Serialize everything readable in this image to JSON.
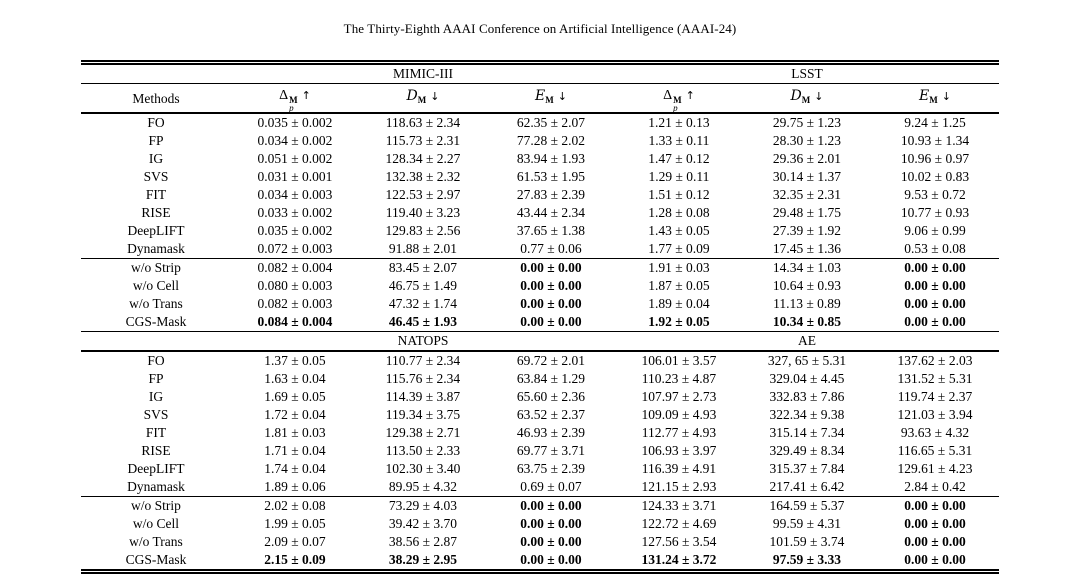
{
  "page": {
    "header": "The Thirty-Eighth AAAI Conference on Artificial Intelligence (AAAI-24)"
  },
  "table": {
    "methods_header": "Methods",
    "metric_columns": [
      {
        "symbol": "Δ",
        "sup": "M",
        "sub": "p",
        "arrow": "↑",
        "style": "delta"
      },
      {
        "symbol": "D",
        "sub": "M",
        "arrow": "↓",
        "style": "script"
      },
      {
        "symbol": "E",
        "sub": "M",
        "arrow": "↓",
        "style": "script"
      }
    ],
    "sections": [
      {
        "groups": [
          "MIMIC-III",
          "LSST"
        ],
        "rows": [
          {
            "method": "FO",
            "values": [
              "0.035 ± 0.002",
              "118.63 ± 2.34",
              "62.35 ± 2.07",
              "1.21 ± 0.13",
              "29.75 ± 1.23",
              "9.24 ± 1.25"
            ],
            "bold": [],
            "rule_above": false
          },
          {
            "method": "FP",
            "values": [
              "0.034 ± 0.002",
              "115.73 ± 2.31",
              "77.28 ± 2.02",
              "1.33 ± 0.11",
              "28.30 ± 1.23",
              "10.93 ± 1.34"
            ],
            "bold": [],
            "rule_above": false
          },
          {
            "method": "IG",
            "values": [
              "0.051 ± 0.002",
              "128.34 ± 2.27",
              "83.94 ± 1.93",
              "1.47 ± 0.12",
              "29.36 ± 2.01",
              "10.96 ± 0.97"
            ],
            "bold": [],
            "rule_above": false
          },
          {
            "method": "SVS",
            "values": [
              "0.031 ± 0.001",
              "132.38 ± 2.32",
              "61.53 ± 1.95",
              "1.29 ± 0.11",
              "30.14 ± 1.37",
              "10.02 ± 0.83"
            ],
            "bold": [],
            "rule_above": false
          },
          {
            "method": "FIT",
            "values": [
              "0.034 ± 0.003",
              "122.53 ± 2.97",
              "27.83 ± 2.39",
              "1.51 ± 0.12",
              "32.35 ± 2.31",
              "9.53 ± 0.72"
            ],
            "bold": [],
            "rule_above": false
          },
          {
            "method": "RISE",
            "values": [
              "0.033 ± 0.002",
              "119.40 ± 3.23",
              "43.44 ± 2.34",
              "1.28 ± 0.08",
              "29.48 ± 1.75",
              "10.77 ± 0.93"
            ],
            "bold": [],
            "rule_above": false
          },
          {
            "method": "DeepLIFT",
            "values": [
              "0.035 ± 0.002",
              "129.83 ± 2.56",
              "37.65 ± 1.38",
              "1.43 ± 0.05",
              "27.39 ± 1.92",
              "9.06 ± 0.99"
            ],
            "bold": [],
            "rule_above": false
          },
          {
            "method": "Dynamask",
            "values": [
              "0.072 ± 0.003",
              "91.88 ± 2.01",
              "0.77 ± 0.06",
              "1.77 ± 0.09",
              "17.45 ± 1.36",
              "0.53 ± 0.08"
            ],
            "bold": [],
            "rule_above": false
          },
          {
            "method": "w/o Strip",
            "values": [
              "0.082 ± 0.004",
              "83.45 ± 2.07",
              "0.00 ± 0.00",
              "1.91 ± 0.03",
              "14.34 ± 1.03",
              "0.00 ± 0.00"
            ],
            "bold": [
              2,
              5
            ],
            "rule_above": true
          },
          {
            "method": "w/o Cell",
            "values": [
              "0.080 ± 0.003",
              "46.75 ± 1.49",
              "0.00 ± 0.00",
              "1.87 ± 0.05",
              "10.64 ± 0.93",
              "0.00 ± 0.00"
            ],
            "bold": [
              2,
              5
            ],
            "rule_above": false
          },
          {
            "method": "w/o Trans",
            "values": [
              "0.082 ± 0.003",
              "47.32 ± 1.74",
              "0.00 ± 0.00",
              "1.89 ± 0.04",
              "11.13 ± 0.89",
              "0.00 ± 0.00"
            ],
            "bold": [
              2,
              5
            ],
            "rule_above": false
          },
          {
            "method": "CGS-Mask",
            "values": [
              "0.084 ± 0.004",
              "46.45 ± 1.93",
              "0.00 ± 0.00",
              "1.92 ± 0.05",
              "10.34 ± 0.85",
              "0.00 ± 0.00"
            ],
            "bold": [
              0,
              1,
              2,
              3,
              4,
              5
            ],
            "rule_above": false
          }
        ]
      },
      {
        "groups": [
          "NATOPS",
          "AE"
        ],
        "rows": [
          {
            "method": "FO",
            "values": [
              "1.37 ± 0.05",
              "110.77 ± 2.34",
              "69.72 ± 2.01",
              "106.01 ± 3.57",
              "327, 65 ± 5.31",
              "137.62 ± 2.03"
            ],
            "bold": [],
            "rule_above": false
          },
          {
            "method": "FP",
            "values": [
              "1.63 ± 0.04",
              "115.76 ± 2.34",
              "63.84 ± 1.29",
              "110.23 ± 4.87",
              "329.04 ± 4.45",
              "131.52 ± 5.31"
            ],
            "bold": [],
            "rule_above": false
          },
          {
            "method": "IG",
            "values": [
              "1.69 ± 0.05",
              "114.39 ± 3.87",
              "65.60 ± 2.36",
              "107.97 ± 2.73",
              "332.83 ± 7.86",
              "119.74 ± 2.37"
            ],
            "bold": [],
            "rule_above": false
          },
          {
            "method": "SVS",
            "values": [
              "1.72 ± 0.04",
              "119.34 ± 3.75",
              "63.52 ± 2.37",
              "109.09 ± 4.93",
              "322.34 ± 9.38",
              "121.03 ± 3.94"
            ],
            "bold": [],
            "rule_above": false
          },
          {
            "method": "FIT",
            "values": [
              "1.81 ± 0.03",
              "129.38 ± 2.71",
              "46.93 ± 2.39",
              "112.77 ± 4.93",
              "315.14 ± 7.34",
              "93.63 ± 4.32"
            ],
            "bold": [],
            "rule_above": false
          },
          {
            "method": "RISE",
            "values": [
              "1.71 ± 0.04",
              "113.50 ± 2.33",
              "69.77 ± 3.71",
              "106.93 ± 3.97",
              "329.49 ± 8.34",
              "116.65 ± 5.31"
            ],
            "bold": [],
            "rule_above": false
          },
          {
            "method": "DeepLIFT",
            "values": [
              "1.74 ± 0.04",
              "102.30 ± 3.40",
              "63.75 ± 2.39",
              "116.39 ± 4.91",
              "315.37 ± 7.84",
              "129.61 ± 4.23"
            ],
            "bold": [],
            "rule_above": false
          },
          {
            "method": "Dynamask",
            "values": [
              "1.89 ± 0.06",
              "89.95 ± 4.32",
              "0.69 ± 0.07",
              "121.15 ± 2.93",
              "217.41 ± 6.42",
              "2.84 ± 0.42"
            ],
            "bold": [],
            "rule_above": false
          },
          {
            "method": "w/o Strip",
            "values": [
              "2.02 ± 0.08",
              "73.29 ± 4.03",
              "0.00 ± 0.00",
              "124.33 ± 3.71",
              "164.59 ± 5.37",
              "0.00 ± 0.00"
            ],
            "bold": [
              2,
              5
            ],
            "rule_above": true
          },
          {
            "method": "w/o Cell",
            "values": [
              "1.99 ± 0.05",
              "39.42 ± 3.70",
              "0.00 ± 0.00",
              "122.72 ± 4.69",
              "99.59 ± 4.31",
              "0.00 ± 0.00"
            ],
            "bold": [
              2,
              5
            ],
            "rule_above": false
          },
          {
            "method": "w/o Trans",
            "values": [
              "2.09 ± 0.07",
              "38.56 ± 2.87",
              "0.00 ± 0.00",
              "127.56 ± 3.54",
              "101.59 ± 3.74",
              "0.00 ± 0.00"
            ],
            "bold": [
              2,
              5
            ],
            "rule_above": false
          },
          {
            "method": "CGS-Mask",
            "values": [
              "2.15 ± 0.09",
              "38.29 ± 2.95",
              "0.00 ± 0.00",
              "131.24 ± 3.72",
              "97.59 ± 3.33",
              "0.00 ± 0.00"
            ],
            "bold": [
              0,
              1,
              2,
              3,
              4,
              5
            ],
            "rule_above": false
          }
        ]
      }
    ]
  }
}
